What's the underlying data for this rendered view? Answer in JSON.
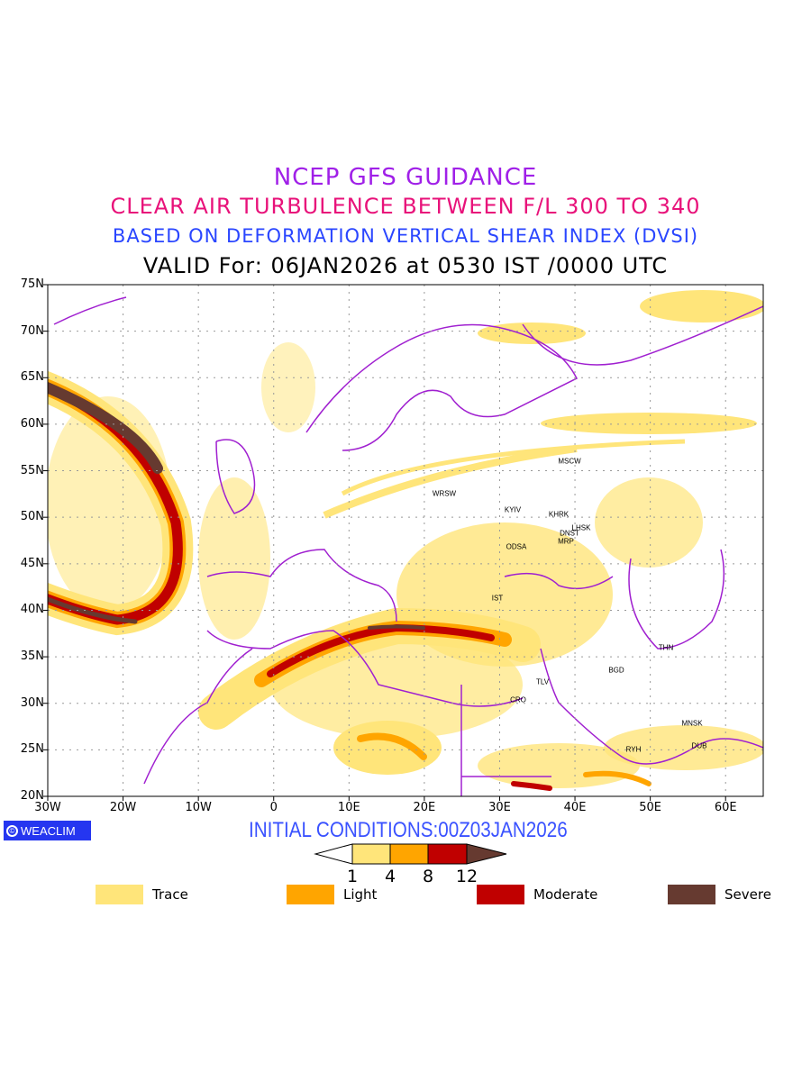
{
  "header": {
    "line1": "NCEP GFS GUIDANCE",
    "line2": "CLEAR AIR TURBULENCE BETWEEN F/L 300 TO 340",
    "line3": "BASED ON DEFORMATION VERTICAL SHEAR INDEX (DVSI)",
    "line4": "VALID For: 06JAN2026 at 0530 IST /0000 UTC"
  },
  "axes": {
    "lon_labels": [
      "30W",
      "20W",
      "10W",
      "0",
      "10E",
      "20E",
      "30E",
      "40E",
      "50E",
      "60E"
    ],
    "lat_labels": [
      "75N",
      "70N",
      "65N",
      "60N",
      "55N",
      "50N",
      "45N",
      "40N",
      "35N",
      "30N",
      "25N",
      "20N"
    ]
  },
  "cities": [
    "MSCW",
    "WRSW",
    "KYIV",
    "KHRK",
    "LHSK",
    "DNST",
    "MRP",
    "ODSA",
    "IST",
    "THN",
    "BGD",
    "TLV",
    "CRO",
    "MNSK",
    "DUB",
    "RYH"
  ],
  "footer": {
    "brand": "WEACLIM",
    "initial_conditions": "INITIAL CONDITIONS:00Z03JAN2026"
  },
  "colorbar": {
    "levels": [
      "1",
      "4",
      "8",
      "12"
    ],
    "colors": [
      "#ffe57a",
      "#ffa500",
      "#c00000",
      "#663a30"
    ]
  },
  "legend": [
    {
      "label": "Trace",
      "color": "#ffe57a"
    },
    {
      "label": "Light",
      "color": "#ffa500"
    },
    {
      "label": "Moderate",
      "color": "#c00000"
    },
    {
      "label": "Severe",
      "color": "#663a30"
    }
  ],
  "colors": {
    "coastline": "#a020d0",
    "grid": "#999999"
  }
}
